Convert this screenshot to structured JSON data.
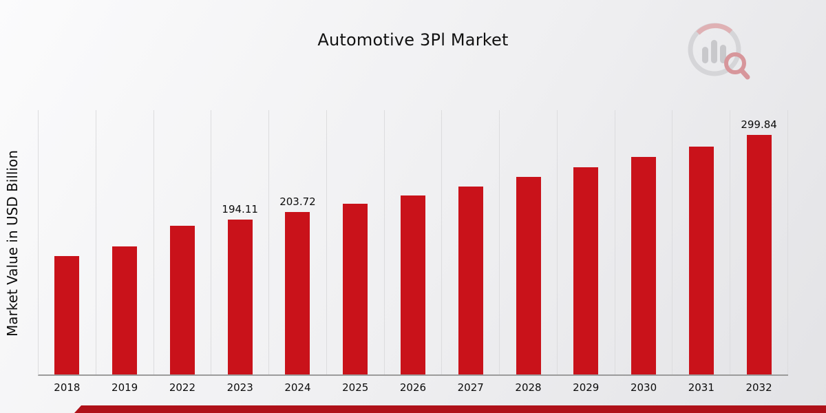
{
  "header": {
    "title": "Automotive 3Pl Market"
  },
  "axis": {
    "ylabel": "Market Value in USD Billion"
  },
  "colors": {
    "bar": "#C9121A",
    "accent_strip": "#AF1119",
    "gridline": "#DCDCDE",
    "baseline": "#9B9B9B"
  },
  "logo": {
    "name": "bar-chart-magnifier-logo"
  },
  "chart_data": {
    "type": "bar",
    "title": "Automotive 3Pl Market",
    "xlabel": "",
    "ylabel": "Market Value in USD Billion",
    "categories": [
      "2018",
      "2019",
      "2022",
      "2023",
      "2024",
      "2025",
      "2026",
      "2027",
      "2028",
      "2029",
      "2030",
      "2031",
      "2032"
    ],
    "values": [
      148.0,
      160.0,
      186.5,
      194.11,
      203.72,
      213.8,
      224.4,
      235.5,
      247.2,
      259.4,
      272.2,
      285.7,
      299.84
    ],
    "data_labels": [
      "",
      "",
      "",
      "194.11",
      "203.72",
      "",
      "",
      "",
      "",
      "",
      "",
      "",
      "299.84"
    ],
    "ylim": [
      0,
      331
    ],
    "grid": "vertical-only",
    "legend": "none",
    "bar_color": "#C9121A",
    "background": "light-gray-gradient"
  }
}
